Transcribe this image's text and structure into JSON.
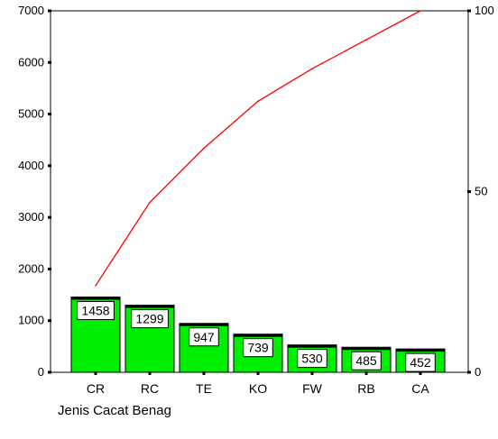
{
  "chart_data": {
    "type": "bar",
    "xlabel": "Jenis Cacat Benag",
    "categories": [
      "CR",
      "RC",
      "TE",
      "KO",
      "FW",
      "RB",
      "CA"
    ],
    "series": [
      {
        "type": "bar",
        "axis": "left",
        "values": [
          1458,
          1299,
          947,
          739,
          530,
          485,
          452
        ],
        "color": "#00ee00"
      },
      {
        "type": "line",
        "axis": "right",
        "values": [
          24,
          47,
          62,
          75,
          84,
          92,
          100
        ],
        "color": "#ff0000"
      }
    ],
    "y_left": {
      "min": 0,
      "max": 7000,
      "ticks": [
        0,
        1000,
        2000,
        3000,
        4000,
        5000,
        6000,
        7000
      ]
    },
    "y_right": {
      "min": 0,
      "max": 100,
      "ticks": [
        0,
        50,
        100
      ]
    },
    "grid": false,
    "legend": "none"
  }
}
